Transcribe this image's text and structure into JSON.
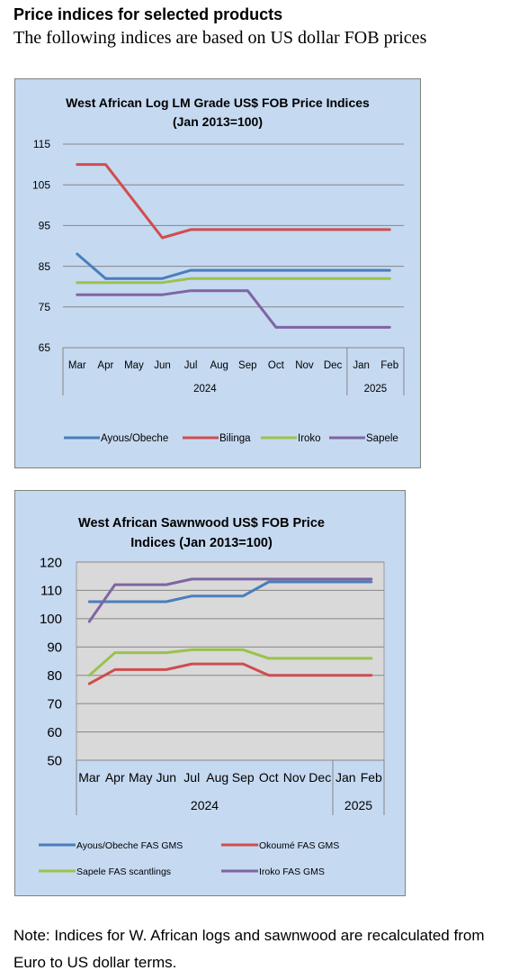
{
  "page": {
    "heading": "Price indices for selected products",
    "subheading": "The following indices are based on US dollar FOB prices",
    "note": "Note: Indices for W. African logs and sawnwood are recalculated from Euro to US dollar terms."
  },
  "chart_data": [
    {
      "type": "line",
      "title": [
        "West African Log LM Grade US$ FOB Price Indices",
        "(Jan 2013=100)"
      ],
      "xlabel": "",
      "ylabel": "",
      "categories": [
        "Mar",
        "Apr",
        "May",
        "Jun",
        "Jul",
        "Aug",
        "Sep",
        "Oct",
        "Nov",
        "Dec",
        "Jan",
        "Feb"
      ],
      "year_groups": [
        {
          "label": "2024",
          "count": 10
        },
        {
          "label": "2025",
          "count": 2
        }
      ],
      "ylim": [
        65,
        115
      ],
      "yticks": [
        65,
        75,
        85,
        95,
        105,
        115
      ],
      "grid": true,
      "plot_background": "#c5d9f1",
      "legend_position": "bottom",
      "series": [
        {
          "name": "Ayous/Obeche",
          "color": "#4a7ebb",
          "values": [
            88,
            82,
            82,
            82,
            84,
            84,
            84,
            84,
            84,
            84,
            84,
            84
          ]
        },
        {
          "name": "Bilinga",
          "color": "#d04d4d",
          "values": [
            110,
            110,
            101,
            92,
            94,
            94,
            94,
            94,
            94,
            94,
            94,
            94
          ]
        },
        {
          "name": "Iroko",
          "color": "#9bc24b",
          "values": [
            81,
            81,
            81,
            81,
            82,
            82,
            82,
            82,
            82,
            82,
            82,
            82
          ]
        },
        {
          "name": "Sapele",
          "color": "#8064a2",
          "values": [
            78,
            78,
            78,
            78,
            79,
            79,
            79,
            70,
            70,
            70,
            70,
            70
          ]
        }
      ]
    },
    {
      "type": "line",
      "title": [
        "West African Sawnwood US$ FOB Price",
        "Indices (Jan 2013=100)"
      ],
      "xlabel": "",
      "ylabel": "",
      "categories": [
        "Mar",
        "Apr",
        "May",
        "Jun",
        "Jul",
        "Aug",
        "Sep",
        "Oct",
        "Nov",
        "Dec",
        "Jan",
        "Feb"
      ],
      "year_groups": [
        {
          "label": "2024",
          "count": 10
        },
        {
          "label": "2025",
          "count": 2
        }
      ],
      "ylim": [
        50,
        120
      ],
      "yticks": [
        50,
        60,
        70,
        80,
        90,
        100,
        110,
        120
      ],
      "grid": true,
      "plot_background": "#d9d9d9",
      "legend_position": "bottom",
      "series": [
        {
          "name": "Ayous/Obeche FAS GMS",
          "color": "#4a7ebb",
          "values": [
            106,
            106,
            106,
            106,
            108,
            108,
            108,
            113,
            113,
            113,
            113,
            113
          ]
        },
        {
          "name": "Okoumé FAS GMS",
          "color": "#d04d4d",
          "values": [
            77,
            82,
            82,
            82,
            84,
            84,
            84,
            80,
            80,
            80,
            80,
            80
          ]
        },
        {
          "name": "Sapele FAS scantlings",
          "color": "#9bc24b",
          "values": [
            80,
            88,
            88,
            88,
            89,
            89,
            89,
            86,
            86,
            86,
            86,
            86
          ]
        },
        {
          "name": "Iroko FAS GMS",
          "color": "#8064a2",
          "values": [
            99,
            112,
            112,
            112,
            114,
            114,
            114,
            114,
            114,
            114,
            114,
            114
          ]
        }
      ]
    }
  ]
}
